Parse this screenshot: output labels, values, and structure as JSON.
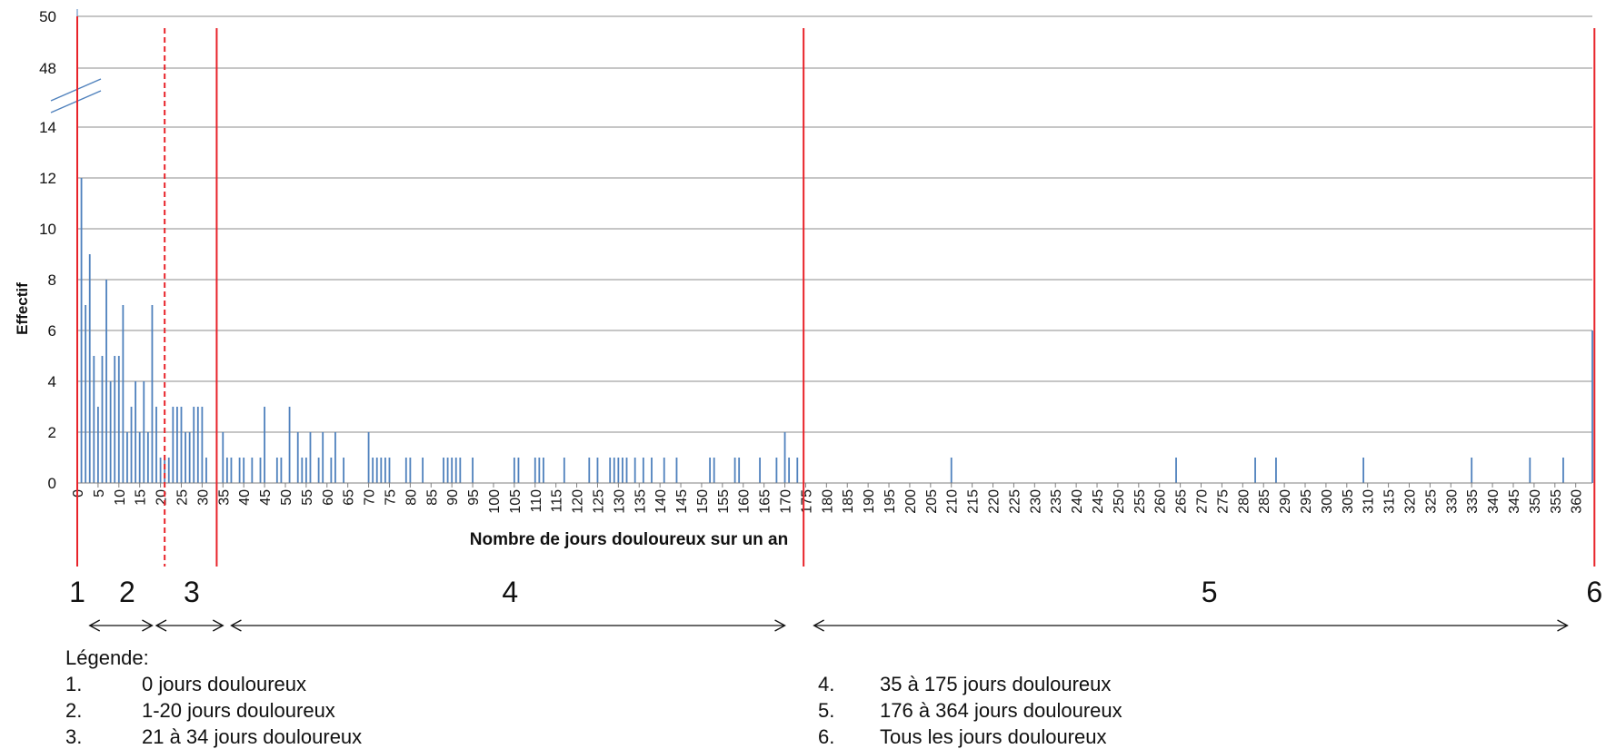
{
  "chart_data": {
    "type": "bar",
    "xlabel": "Nombre de jours douloureux sur un an",
    "ylabel": "Effectif",
    "x_range": [
      0,
      364
    ],
    "x_tick_step": 5,
    "x_tick_labels": [
      "0",
      "5",
      "10",
      "15",
      "20",
      "25",
      "30",
      "35",
      "40",
      "45",
      "50",
      "55",
      "60",
      "65",
      "70",
      "75",
      "80",
      "85",
      "90",
      "95",
      "100",
      "105",
      "110",
      "115",
      "120",
      "125",
      "130",
      "135",
      "140",
      "145",
      "150",
      "155",
      "160",
      "165",
      "170",
      "175",
      "180",
      "185",
      "190",
      "195",
      "200",
      "205",
      "210",
      "215",
      "220",
      "225",
      "230",
      "235",
      "240",
      "245",
      "250",
      "255",
      "260",
      "265",
      "270",
      "275",
      "280",
      "285",
      "290",
      "295",
      "300",
      "305",
      "310",
      "315",
      "320",
      "325",
      "330",
      "335",
      "340",
      "345",
      "350",
      "355",
      "360"
    ],
    "y_axis_break": true,
    "y_tick_labels": [
      "0",
      "2",
      "4",
      "6",
      "8",
      "10",
      "12",
      "14",
      "48",
      "50"
    ],
    "y_lower_range": [
      0,
      14
    ],
    "y_upper_range": [
      48,
      50
    ],
    "grid": true,
    "series_color": "#4F81BD",
    "points": [
      [
        0,
        50
      ],
      [
        1,
        12
      ],
      [
        2,
        7
      ],
      [
        3,
        9
      ],
      [
        4,
        5
      ],
      [
        5,
        3
      ],
      [
        6,
        5
      ],
      [
        7,
        8
      ],
      [
        8,
        4
      ],
      [
        9,
        5
      ],
      [
        10,
        5
      ],
      [
        11,
        7
      ],
      [
        12,
        2
      ],
      [
        13,
        3
      ],
      [
        14,
        4
      ],
      [
        15,
        2
      ],
      [
        16,
        4
      ],
      [
        17,
        2
      ],
      [
        18,
        7
      ],
      [
        19,
        3
      ],
      [
        20,
        1
      ],
      [
        21,
        1
      ],
      [
        22,
        1
      ],
      [
        23,
        3
      ],
      [
        24,
        3
      ],
      [
        25,
        3
      ],
      [
        26,
        2
      ],
      [
        27,
        2
      ],
      [
        28,
        3
      ],
      [
        29,
        3
      ],
      [
        30,
        3
      ],
      [
        31,
        1
      ],
      [
        35,
        2
      ],
      [
        36,
        1
      ],
      [
        37,
        1
      ],
      [
        39,
        1
      ],
      [
        40,
        1
      ],
      [
        42,
        1
      ],
      [
        44,
        1
      ],
      [
        45,
        3
      ],
      [
        48,
        1
      ],
      [
        49,
        1
      ],
      [
        51,
        3
      ],
      [
        53,
        2
      ],
      [
        54,
        1
      ],
      [
        55,
        1
      ],
      [
        56,
        2
      ],
      [
        58,
        1
      ],
      [
        59,
        2
      ],
      [
        61,
        1
      ],
      [
        62,
        2
      ],
      [
        64,
        1
      ],
      [
        70,
        2
      ],
      [
        71,
        1
      ],
      [
        72,
        1
      ],
      [
        73,
        1
      ],
      [
        74,
        1
      ],
      [
        75,
        1
      ],
      [
        79,
        1
      ],
      [
        80,
        1
      ],
      [
        83,
        1
      ],
      [
        88,
        1
      ],
      [
        89,
        1
      ],
      [
        90,
        1
      ],
      [
        91,
        1
      ],
      [
        92,
        1
      ],
      [
        95,
        1
      ],
      [
        105,
        1
      ],
      [
        106,
        1
      ],
      [
        110,
        1
      ],
      [
        111,
        1
      ],
      [
        112,
        1
      ],
      [
        117,
        1
      ],
      [
        123,
        1
      ],
      [
        125,
        1
      ],
      [
        128,
        1
      ],
      [
        129,
        1
      ],
      [
        130,
        1
      ],
      [
        131,
        1
      ],
      [
        132,
        1
      ],
      [
        134,
        1
      ],
      [
        136,
        1
      ],
      [
        138,
        1
      ],
      [
        141,
        1
      ],
      [
        144,
        1
      ],
      [
        152,
        1
      ],
      [
        153,
        1
      ],
      [
        158,
        1
      ],
      [
        159,
        1
      ],
      [
        164,
        1
      ],
      [
        168,
        1
      ],
      [
        170,
        2
      ],
      [
        171,
        1
      ],
      [
        173,
        1
      ],
      [
        210,
        1
      ],
      [
        264,
        1
      ],
      [
        283,
        1
      ],
      [
        288,
        1
      ],
      [
        309,
        1
      ],
      [
        335,
        1
      ],
      [
        349,
        1
      ],
      [
        357,
        1
      ],
      [
        364,
        6
      ]
    ],
    "boundaries": [
      {
        "day": 0,
        "style": "solid"
      },
      {
        "day": 21,
        "style": "dashed"
      },
      {
        "day": 33.5,
        "style": "solid"
      },
      {
        "day": 174.5,
        "style": "solid"
      },
      {
        "day": 364.5,
        "style": "solid"
      }
    ],
    "boundary_color": "#E8232A",
    "groups": [
      {
        "num": "1",
        "day": 0
      },
      {
        "num": "2",
        "day": 12
      },
      {
        "num": "3",
        "day": 27.5
      },
      {
        "num": "4",
        "day": 104
      },
      {
        "num": "5",
        "day": 272
      },
      {
        "num": "6",
        "day": 364.5
      }
    ],
    "spans": [
      [
        3,
        18
      ],
      [
        19,
        35
      ],
      [
        37,
        170
      ],
      [
        177,
        358
      ]
    ]
  },
  "legend": {
    "title": "Légende:",
    "items": [
      {
        "num": "1.",
        "text": "0 jours douloureux"
      },
      {
        "num": "2.",
        "text": "1-20 jours douloureux"
      },
      {
        "num": "3.",
        "text": "21 à 34 jours douloureux"
      },
      {
        "num": "4.",
        "text": "35 à 175 jours douloureux"
      },
      {
        "num": "5.",
        "text": "176 à 364 jours douloureux"
      },
      {
        "num": "6.",
        "text": "Tous les jours douloureux"
      }
    ]
  }
}
